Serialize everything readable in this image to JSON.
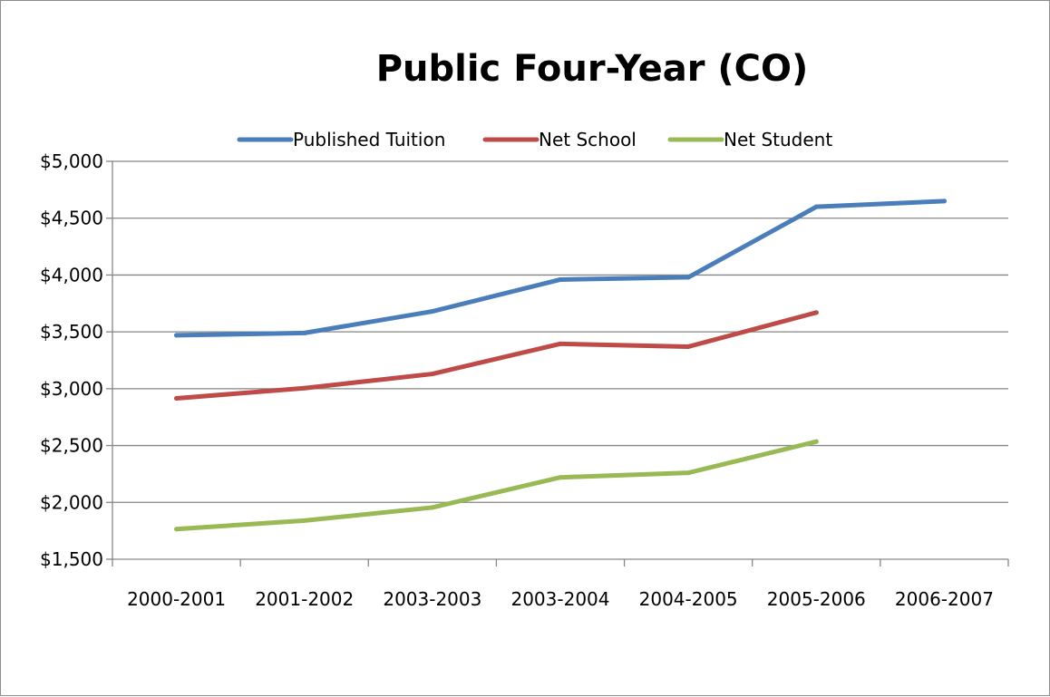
{
  "chart_data": {
    "type": "line",
    "title": "Public Four-Year (CO)",
    "xlabel": "",
    "ylabel": "",
    "categories": [
      "2000-2001",
      "2001-2002",
      "2003-2003",
      "2003-2004",
      "2004-2005",
      "2005-2006",
      "2006-2007"
    ],
    "ylim": [
      1500,
      5000
    ],
    "yticks": [
      1500,
      2000,
      2500,
      3000,
      3500,
      4000,
      4500,
      5000
    ],
    "ytick_labels": [
      "$1,500",
      "$2,000",
      "$2,500",
      "$3,000",
      "$3,500",
      "$4,000",
      "$4,500",
      "$5,000"
    ],
    "grid": true,
    "legend_position": "top",
    "series": [
      {
        "name": "Published Tuition",
        "color": "#4a7ebb",
        "values": [
          3470,
          3490,
          3680,
          3960,
          3980,
          4600,
          4650
        ]
      },
      {
        "name": "Net School",
        "color": "#be4b48",
        "values": [
          2915,
          3005,
          3130,
          3395,
          3370,
          3670,
          null
        ]
      },
      {
        "name": "Net Student",
        "color": "#98b954",
        "values": [
          1765,
          1840,
          1955,
          2220,
          2260,
          2535,
          null
        ]
      }
    ]
  }
}
